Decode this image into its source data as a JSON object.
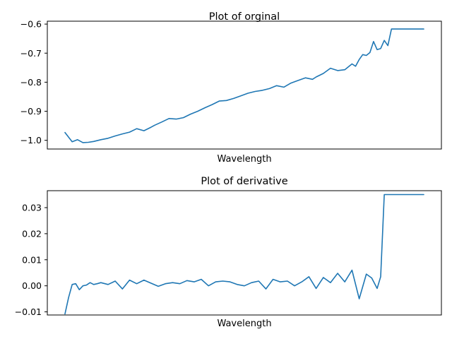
{
  "chart_data": [
    {
      "type": "line",
      "title": "Plot of orginal",
      "xlabel": "Wavelength",
      "ylabel": "",
      "xticks_shown": false,
      "xlim": [
        0,
        1
      ],
      "ylim": [
        -1.03,
        -0.59
      ],
      "yticks": [
        -1.0,
        -0.9,
        -0.8,
        -0.7,
        -0.6
      ],
      "ytick_labels": [
        "−1.0",
        "−0.9",
        "−0.8",
        "−0.7",
        "−0.6"
      ],
      "grid": false,
      "legend": "none",
      "series_color": "#1f77b4",
      "series": [
        {
          "x": [
            0.0,
            0.02,
            0.035,
            0.05,
            0.065,
            0.08,
            0.1,
            0.12,
            0.14,
            0.16,
            0.18,
            0.2,
            0.22,
            0.24,
            0.25,
            0.27,
            0.29,
            0.31,
            0.33,
            0.35,
            0.37,
            0.39,
            0.41,
            0.43,
            0.45,
            0.47,
            0.49,
            0.51,
            0.53,
            0.55,
            0.57,
            0.59,
            0.61,
            0.63,
            0.65,
            0.67,
            0.69,
            0.7,
            0.72,
            0.74,
            0.76,
            0.78,
            0.8,
            0.81,
            0.82,
            0.83,
            0.84,
            0.85,
            0.86,
            0.87,
            0.88,
            0.89,
            0.9,
            0.91,
            0.92,
            0.93,
            0.94,
            0.95,
            0.96,
            0.97,
            0.98,
            0.99,
            1.0
          ],
          "y": [
            -0.973,
            -1.005,
            -0.998,
            -1.008,
            -1.007,
            -1.004,
            -0.998,
            -0.993,
            -0.985,
            -0.978,
            -0.972,
            -0.96,
            -0.967,
            -0.955,
            -0.948,
            -0.937,
            -0.925,
            -0.927,
            -0.922,
            -0.91,
            -0.9,
            -0.888,
            -0.877,
            -0.865,
            -0.863,
            -0.856,
            -0.847,
            -0.838,
            -0.832,
            -0.828,
            -0.822,
            -0.812,
            -0.817,
            -0.803,
            -0.794,
            -0.785,
            -0.79,
            -0.782,
            -0.77,
            -0.752,
            -0.76,
            -0.757,
            -0.737,
            -0.745,
            -0.722,
            -0.705,
            -0.708,
            -0.698,
            -0.66,
            -0.688,
            -0.684,
            -0.656,
            -0.674,
            -0.617,
            -0.617,
            -0.617,
            -0.617,
            -0.617,
            -0.617,
            -0.617,
            -0.617,
            -0.617,
            -0.617
          ]
        }
      ]
    },
    {
      "type": "line",
      "title": "Plot of derivative",
      "xlabel": "Wavelength",
      "ylabel": "",
      "xticks_shown": false,
      "xlim": [
        0,
        1
      ],
      "ylim": [
        -0.0112,
        0.0365
      ],
      "yticks": [
        -0.01,
        0.0,
        0.01,
        0.02,
        0.03
      ],
      "ytick_labels": [
        "−0.01",
        "0.00",
        "0.01",
        "0.02",
        "0.03"
      ],
      "grid": false,
      "legend": "none",
      "series_color": "#1f77b4",
      "series": [
        {
          "x": [
            0.0,
            0.01,
            0.02,
            0.03,
            0.04,
            0.05,
            0.06,
            0.07,
            0.08,
            0.09,
            0.1,
            0.12,
            0.14,
            0.16,
            0.18,
            0.2,
            0.22,
            0.24,
            0.26,
            0.28,
            0.3,
            0.32,
            0.34,
            0.36,
            0.38,
            0.4,
            0.42,
            0.44,
            0.46,
            0.48,
            0.5,
            0.52,
            0.54,
            0.56,
            0.58,
            0.6,
            0.62,
            0.64,
            0.66,
            0.68,
            0.7,
            0.72,
            0.74,
            0.76,
            0.78,
            0.8,
            0.82,
            0.84,
            0.855,
            0.87,
            0.88,
            0.89,
            0.9,
            0.91,
            0.92,
            0.93,
            0.94,
            0.95,
            0.96,
            0.97,
            0.98,
            0.99,
            1.0
          ],
          "y": [
            -0.0108,
            -0.0045,
            0.0005,
            0.0008,
            -0.0015,
            0.0,
            0.0003,
            0.0012,
            0.0005,
            0.0008,
            0.0012,
            0.0005,
            0.0018,
            -0.0012,
            0.0022,
            0.0008,
            0.0022,
            0.001,
            -0.0002,
            0.0008,
            0.0012,
            0.0008,
            0.002,
            0.0015,
            0.0025,
            0.0,
            0.0015,
            0.0018,
            0.0015,
            0.0005,
            0.0,
            0.0012,
            0.0018,
            -0.0012,
            0.0025,
            0.0015,
            0.0018,
            0.0,
            0.0015,
            0.0035,
            -0.001,
            0.0032,
            0.0012,
            0.0048,
            0.0015,
            0.006,
            -0.005,
            0.0045,
            0.003,
            -0.001,
            0.0035,
            0.035,
            0.035,
            0.035,
            0.035,
            0.035,
            0.035,
            0.035,
            0.035,
            0.035,
            0.035,
            0.035,
            0.035
          ]
        }
      ]
    }
  ]
}
